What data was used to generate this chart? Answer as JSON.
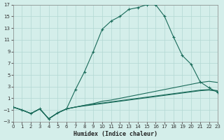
{
  "xlabel": "Humidex (Indice chaleur)",
  "bg_color": "#d4eeea",
  "grid_color": "#b2d8d2",
  "line_color": "#1a6b5a",
  "xlim": [
    0,
    23
  ],
  "ylim": [
    -3,
    17
  ],
  "xticks": [
    0,
    1,
    2,
    3,
    4,
    5,
    6,
    7,
    8,
    9,
    10,
    11,
    12,
    13,
    14,
    15,
    16,
    17,
    18,
    19,
    20,
    21,
    22,
    23
  ],
  "yticks": [
    -3,
    -1,
    1,
    3,
    5,
    7,
    9,
    11,
    13,
    15,
    17
  ],
  "series1_x": [
    0,
    1,
    2,
    3,
    4,
    5,
    6,
    7,
    8,
    9,
    10,
    11,
    12,
    13,
    14,
    15,
    16,
    17,
    18,
    19,
    20,
    21,
    22,
    23
  ],
  "series1_y": [
    -0.5,
    -1.0,
    -1.6,
    -0.8,
    -2.5,
    -1.5,
    -0.8,
    2.5,
    5.5,
    9.0,
    12.8,
    14.2,
    15.0,
    16.2,
    16.5,
    17.0,
    17.0,
    15.0,
    11.5,
    8.3,
    6.8,
    3.8,
    2.8,
    2.0
  ],
  "series2_x": [
    0,
    1,
    2,
    3,
    4,
    5,
    6,
    7,
    8,
    9,
    10,
    11,
    12,
    13,
    14,
    15,
    16,
    17,
    18,
    19,
    20,
    21,
    22,
    23
  ],
  "series2_y": [
    -0.5,
    -1.0,
    -1.6,
    -0.8,
    -2.5,
    -1.5,
    -0.8,
    -0.5,
    -0.2,
    0.1,
    0.5,
    0.7,
    1.0,
    1.3,
    1.6,
    1.9,
    2.2,
    2.5,
    2.8,
    3.1,
    3.4,
    3.7,
    3.9,
    3.7
  ],
  "series3_x": [
    0,
    1,
    2,
    3,
    4,
    5,
    6,
    7,
    8,
    9,
    10,
    11,
    12,
    13,
    14,
    15,
    16,
    17,
    18,
    19,
    20,
    21,
    22,
    23
  ],
  "series3_y": [
    -0.5,
    -1.0,
    -1.6,
    -0.8,
    -2.5,
    -1.5,
    -0.8,
    -0.5,
    -0.2,
    0.0,
    0.2,
    0.4,
    0.6,
    0.8,
    1.0,
    1.2,
    1.4,
    1.6,
    1.8,
    2.0,
    2.2,
    2.4,
    2.5,
    2.3
  ],
  "series4_x": [
    0,
    1,
    2,
    3,
    4,
    5,
    6,
    7,
    8,
    9,
    10,
    11,
    12,
    13,
    14,
    15,
    16,
    17,
    18,
    19,
    20,
    21,
    22,
    23
  ],
  "series4_y": [
    -0.5,
    -1.0,
    -1.6,
    -0.8,
    -2.5,
    -1.5,
    -0.8,
    -0.5,
    -0.3,
    -0.1,
    0.1,
    0.3,
    0.5,
    0.7,
    0.9,
    1.1,
    1.3,
    1.5,
    1.7,
    1.9,
    2.1,
    2.3,
    2.4,
    2.2
  ]
}
